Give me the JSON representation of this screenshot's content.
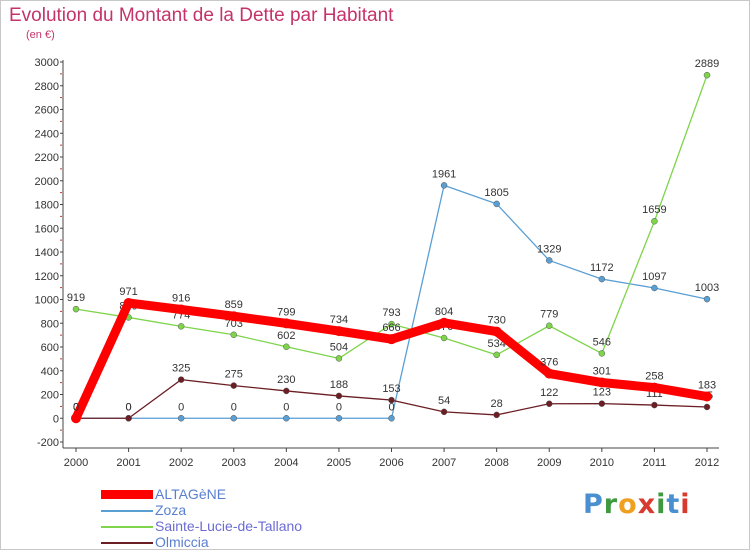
{
  "chart_data": {
    "type": "line",
    "title": "Evolution du Montant de la Dette par Habitant",
    "subtitle": "(en €)",
    "x": [
      "2000",
      "2001",
      "2002",
      "2003",
      "2004",
      "2005",
      "2006",
      "2007",
      "2008",
      "2009",
      "2010",
      "2011",
      "2012"
    ],
    "ylim": [
      -200,
      3000
    ],
    "yticks": [
      -200,
      0,
      200,
      400,
      600,
      800,
      1000,
      1200,
      1400,
      1600,
      1800,
      2000,
      2200,
      2400,
      2600,
      2800,
      3000
    ],
    "grid": false,
    "legend_position": "bottom-left",
    "series": [
      {
        "name": "ALTAGèNE",
        "color": "#ff0000",
        "values": [
          0,
          971,
          916,
          859,
          799,
          734,
          666,
          804,
          730,
          376,
          301,
          258,
          183
        ]
      },
      {
        "name": "Zoza",
        "color": "#5a9fd4",
        "values": [
          0,
          0,
          0,
          0,
          0,
          0,
          0,
          1961,
          1805,
          1329,
          1172,
          1097,
          1003
        ]
      },
      {
        "name": "Sainte-Lucie-de-Tallano",
        "color": "#7ed44a",
        "values": [
          919,
          849,
          774,
          703,
          602,
          504,
          793,
          676,
          534,
          779,
          546,
          1659,
          2889
        ]
      },
      {
        "name": "Olmiccia",
        "color": "#6b1e24",
        "values": [
          0,
          0,
          325,
          275,
          230,
          188,
          153,
          54,
          28,
          122,
          123,
          111,
          95
        ]
      }
    ]
  },
  "logo": {
    "letters": [
      {
        "ch": "P",
        "color": "#4a8fd0"
      },
      {
        "ch": "r",
        "color": "#3f9a3f"
      },
      {
        "ch": "o",
        "color": "#f0a020"
      },
      {
        "ch": "x",
        "color": "#d93a30"
      },
      {
        "ch": "i",
        "color": "#3f9a3f"
      },
      {
        "ch": "t",
        "color": "#4a8fd0"
      },
      {
        "ch": "i",
        "color": "#d93a30"
      }
    ]
  }
}
